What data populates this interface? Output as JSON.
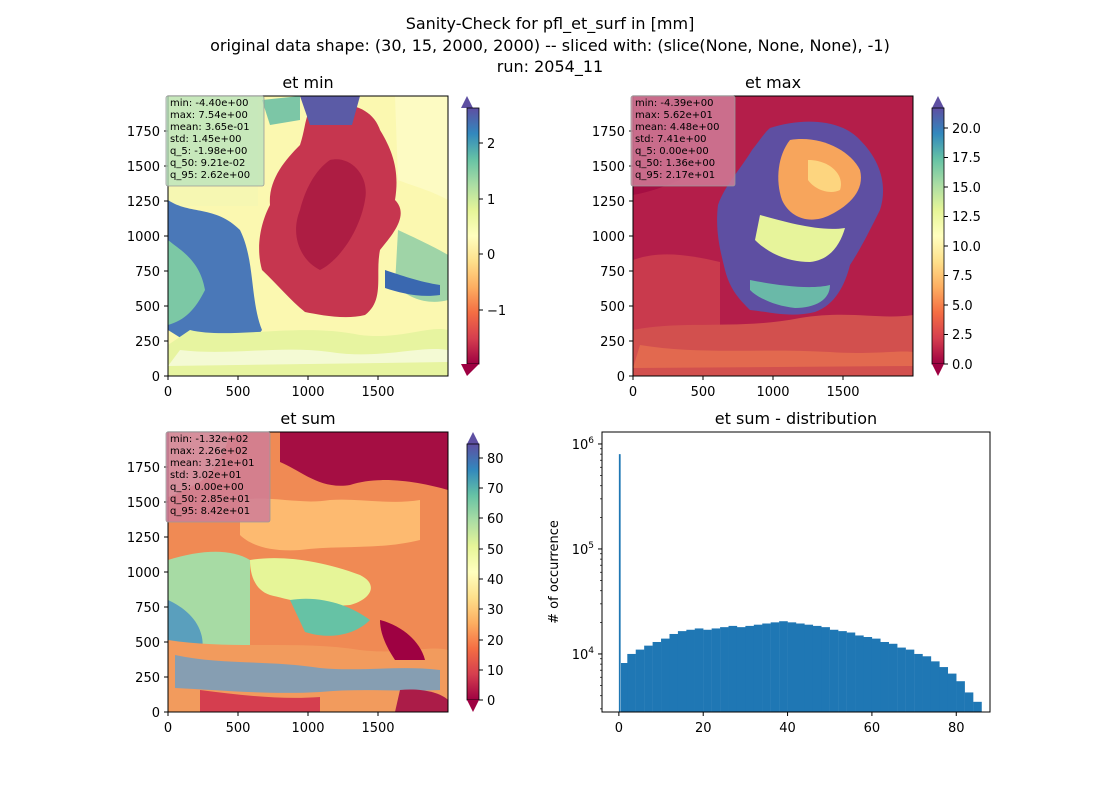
{
  "suptitle": {
    "line1": "Sanity-Check for pfl_et_surf in [mm]",
    "line2": "original data shape: (30, 15, 2000, 2000) -- sliced with: (slice(None, None, None), -1)",
    "line3": "run: 2054_11"
  },
  "colors": {
    "spectral": [
      "#9e0142",
      "#d53e4f",
      "#f46d43",
      "#fdae61",
      "#fee08b",
      "#ffffbf",
      "#e6f598",
      "#abdda4",
      "#66c2a5",
      "#3288bd",
      "#5e4fa2"
    ],
    "hist_bar": "#1f77b4",
    "stat_box_light": "#b7e3bd",
    "stat_box_pink": "#cf7c98"
  },
  "chart_data": [
    {
      "type": "heatmap",
      "title": "et min",
      "xlim": [
        0,
        2000
      ],
      "ylim": [
        0,
        2000
      ],
      "x_ticks": [
        "0",
        "500",
        "1000",
        "1500"
      ],
      "y_ticks": [
        "0",
        "250",
        "500",
        "750",
        "1000",
        "1250",
        "1500",
        "1750"
      ],
      "colorbar": {
        "range": [
          -1.98,
          2.62
        ],
        "ticks": [
          "−1",
          "0",
          "1",
          "2"
        ],
        "tick_values": [
          -1,
          0,
          1,
          2
        ],
        "extend": "both"
      },
      "stats": [
        "min: -4.40e+00",
        "max: 7.54e+00",
        "mean: 3.65e-01",
        "std: 1.45e+00",
        "q_5: -1.98e+00",
        "q_50: 9.21e-02",
        "q_95: 2.62e+00"
      ]
    },
    {
      "type": "heatmap",
      "title": "et max",
      "xlim": [
        0,
        2000
      ],
      "ylim": [
        0,
        2000
      ],
      "x_ticks": [
        "0",
        "500",
        "1000",
        "1500"
      ],
      "y_ticks": [
        "0",
        "250",
        "500",
        "750",
        "1000",
        "1250",
        "1500",
        "1750"
      ],
      "colorbar": {
        "range": [
          0,
          21.7
        ],
        "ticks": [
          "0.0",
          "2.5",
          "5.0",
          "7.5",
          "10.0",
          "12.5",
          "15.0",
          "17.5",
          "20.0"
        ],
        "tick_values": [
          0,
          2.5,
          5,
          7.5,
          10,
          12.5,
          15,
          17.5,
          20
        ],
        "extend": "both"
      },
      "stats": [
        "min: -4.39e+00",
        "max: 5.62e+01",
        "mean: 4.48e+00",
        "std: 7.41e+00",
        "q_5: 0.00e+00",
        "q_50: 1.36e+00",
        "q_95: 2.17e+01"
      ]
    },
    {
      "type": "heatmap",
      "title": "et sum",
      "xlim": [
        0,
        2000
      ],
      "ylim": [
        0,
        2000
      ],
      "x_ticks": [
        "0",
        "500",
        "1000",
        "1500"
      ],
      "y_ticks": [
        "0",
        "250",
        "500",
        "750",
        "1000",
        "1250",
        "1500",
        "1750"
      ],
      "colorbar": {
        "range": [
          -2,
          85.5
        ],
        "ticks": [
          "0",
          "10",
          "20",
          "30",
          "40",
          "50",
          "60",
          "70",
          "80"
        ],
        "tick_values": [
          0,
          10,
          20,
          30,
          40,
          50,
          60,
          70,
          80
        ],
        "extend": "both"
      },
      "stats": [
        "min: -1.32e+02",
        "max: 2.26e+02",
        "mean: 3.21e+01",
        "std: 3.02e+01",
        "q_5: 0.00e+00",
        "q_50: 2.85e+01",
        "q_95: 8.42e+01"
      ]
    },
    {
      "type": "bar",
      "title": "et sum - distribution",
      "xlabel": "",
      "ylabel": "# of occurrence",
      "yscale": "log",
      "xlim": [
        -4,
        88
      ],
      "ylim": [
        2800,
        1300000
      ],
      "x_ticks": [
        "0",
        "20",
        "40",
        "60",
        "80"
      ],
      "x_tick_values": [
        0,
        20,
        40,
        60,
        80
      ],
      "y_ticks": [
        {
          "base": "10",
          "exp": "4",
          "value": 10000
        },
        {
          "base": "10",
          "exp": "5",
          "value": 100000
        },
        {
          "base": "10",
          "exp": "6",
          "value": 1000000
        }
      ],
      "bin_width": 0.42,
      "bins": [
        {
          "x": 0,
          "y": 800000
        },
        {
          "x": 0.5,
          "y": 8200
        },
        {
          "x": 2,
          "y": 10000
        },
        {
          "x": 4,
          "y": 11000
        },
        {
          "x": 6,
          "y": 12000
        },
        {
          "x": 8,
          "y": 13000
        },
        {
          "x": 10,
          "y": 14000
        },
        {
          "x": 12,
          "y": 15500
        },
        {
          "x": 14,
          "y": 16500
        },
        {
          "x": 16,
          "y": 17000
        },
        {
          "x": 18,
          "y": 17500
        },
        {
          "x": 20,
          "y": 17000
        },
        {
          "x": 22,
          "y": 17500
        },
        {
          "x": 24,
          "y": 18000
        },
        {
          "x": 26,
          "y": 18500
        },
        {
          "x": 28,
          "y": 18000
        },
        {
          "x": 30,
          "y": 18500
        },
        {
          "x": 32,
          "y": 19000
        },
        {
          "x": 34,
          "y": 19500
        },
        {
          "x": 36,
          "y": 20000
        },
        {
          "x": 38,
          "y": 20500
        },
        {
          "x": 40,
          "y": 20000
        },
        {
          "x": 42,
          "y": 19500
        },
        {
          "x": 44,
          "y": 19000
        },
        {
          "x": 46,
          "y": 18500
        },
        {
          "x": 48,
          "y": 18000
        },
        {
          "x": 50,
          "y": 17000
        },
        {
          "x": 52,
          "y": 16500
        },
        {
          "x": 54,
          "y": 16000
        },
        {
          "x": 56,
          "y": 15000
        },
        {
          "x": 58,
          "y": 14500
        },
        {
          "x": 60,
          "y": 14000
        },
        {
          "x": 62,
          "y": 13000
        },
        {
          "x": 64,
          "y": 12500
        },
        {
          "x": 66,
          "y": 11500
        },
        {
          "x": 68,
          "y": 11000
        },
        {
          "x": 70,
          "y": 10000
        },
        {
          "x": 72,
          "y": 9500
        },
        {
          "x": 74,
          "y": 8500
        },
        {
          "x": 76,
          "y": 7500
        },
        {
          "x": 78,
          "y": 6500
        },
        {
          "x": 80,
          "y": 5500
        },
        {
          "x": 82,
          "y": 4300
        },
        {
          "x": 84,
          "y": 3500
        }
      ]
    }
  ]
}
